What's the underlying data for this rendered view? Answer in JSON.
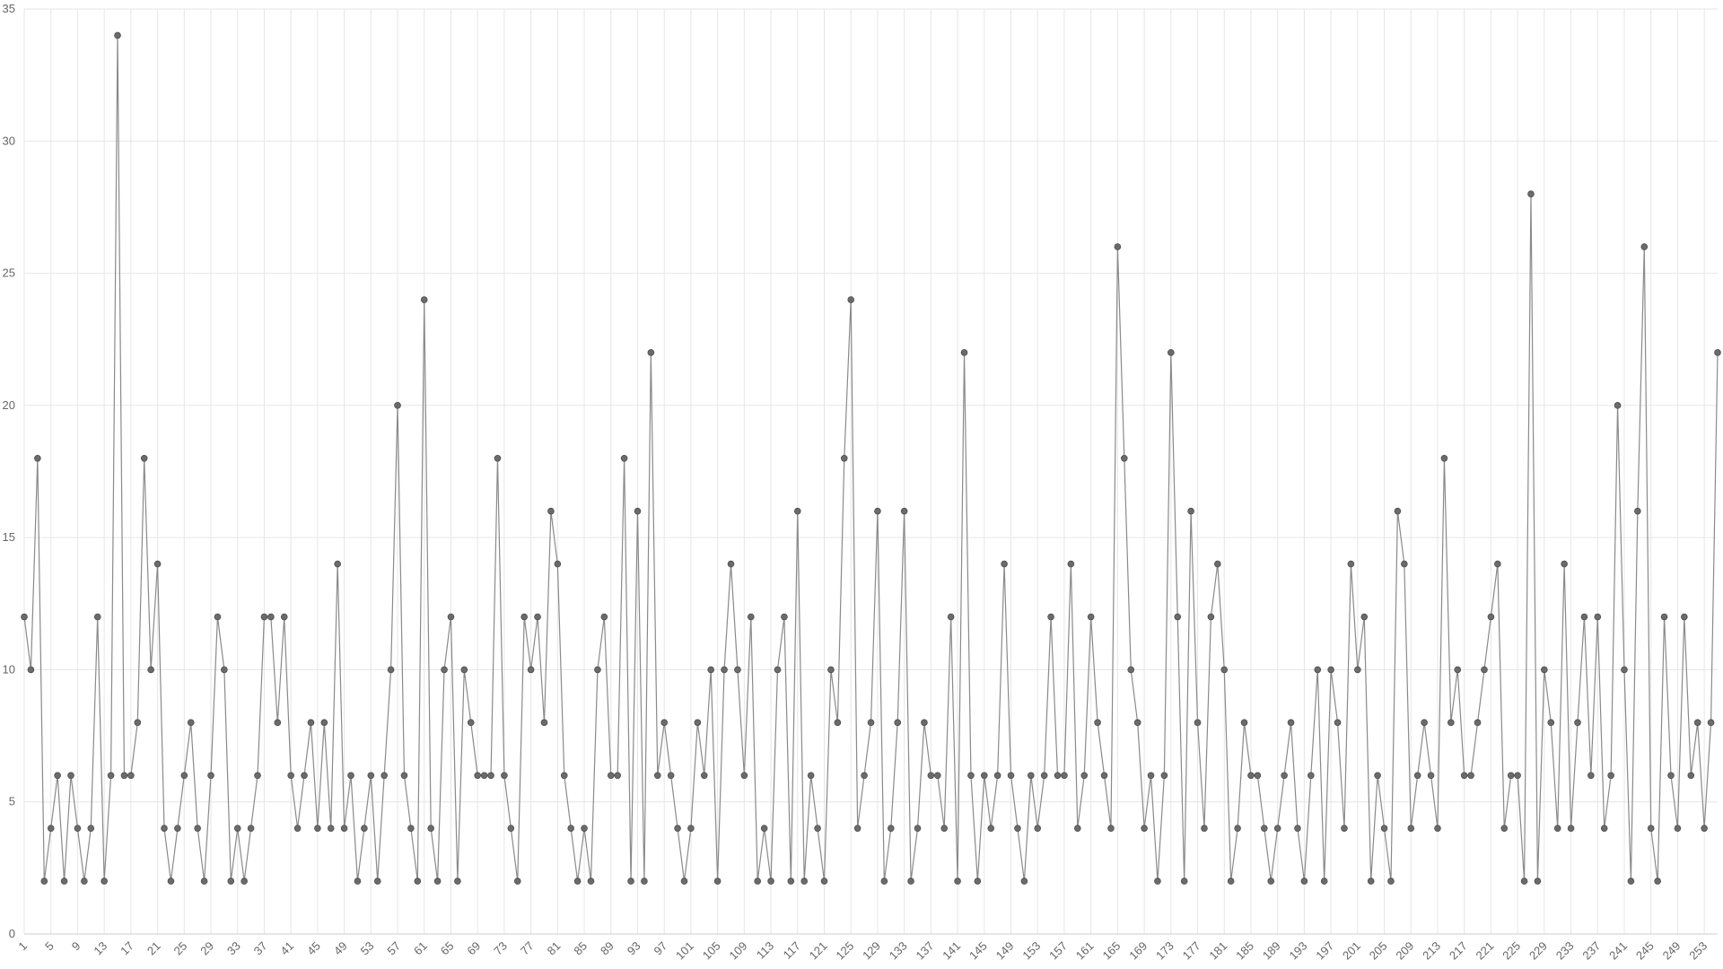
{
  "chart_data": {
    "type": "line",
    "title": "",
    "xlabel": "",
    "ylabel": "",
    "x": [
      1,
      2,
      3,
      4,
      5,
      6,
      7,
      8,
      9,
      10,
      11,
      12,
      13,
      14,
      15,
      16,
      17,
      18,
      19,
      20,
      21,
      22,
      23,
      24,
      25,
      26,
      27,
      28,
      29,
      30,
      31,
      32,
      33,
      34,
      35,
      36,
      37,
      38,
      39,
      40,
      41,
      42,
      43,
      44,
      45,
      46,
      47,
      48,
      49,
      50,
      51,
      52,
      53,
      54,
      55,
      56,
      57,
      58,
      59,
      60,
      61,
      62,
      63,
      64,
      65,
      66,
      67,
      68,
      69,
      70,
      71,
      72,
      73,
      74,
      75,
      76,
      77,
      78,
      79,
      80,
      81,
      82,
      83,
      84,
      85,
      86,
      87,
      88,
      89,
      90,
      91,
      92,
      93,
      94,
      95,
      96,
      97,
      98,
      99,
      100,
      101,
      102,
      103,
      104,
      105,
      106,
      107,
      108,
      109,
      110,
      111,
      112,
      113,
      114,
      115,
      116,
      117,
      118,
      119,
      120,
      121,
      122,
      123,
      124,
      125,
      126,
      127,
      128,
      129,
      130,
      131,
      132,
      133,
      134,
      135,
      136,
      137,
      138,
      139,
      140,
      141,
      142,
      143,
      144,
      145,
      146,
      147,
      148,
      149,
      150,
      151,
      152,
      153,
      154,
      155,
      156,
      157,
      158,
      159,
      160,
      161,
      162,
      163,
      164,
      165,
      166,
      167,
      168,
      169,
      170,
      171,
      172,
      173,
      174,
      175,
      176,
      177,
      178,
      179,
      180,
      181,
      182,
      183,
      184,
      185,
      186,
      187,
      188,
      189,
      190,
      191,
      192,
      193,
      194,
      195,
      196,
      197,
      198,
      199,
      200,
      201,
      202,
      203,
      204,
      205,
      206,
      207,
      208,
      209,
      210,
      211,
      212,
      213,
      214,
      215,
      216,
      217,
      218,
      219,
      220,
      221,
      222,
      223,
      224,
      225,
      226,
      227,
      228,
      229,
      230,
      231,
      232,
      233,
      234,
      235,
      236,
      237,
      238,
      239,
      240,
      241,
      242,
      243,
      244,
      245,
      246,
      247,
      248,
      249,
      250,
      251,
      252,
      253,
      254,
      255
    ],
    "x_tick_labels": [
      "1",
      "5",
      "9",
      "13",
      "17",
      "21",
      "25",
      "29",
      "33",
      "37",
      "41",
      "45",
      "49",
      "53",
      "57",
      "61",
      "65",
      "69",
      "73",
      "77",
      "81",
      "85",
      "89",
      "93",
      "97",
      "101",
      "105",
      "109",
      "113",
      "117",
      "121",
      "125",
      "129",
      "133",
      "137",
      "141",
      "145",
      "149",
      "153",
      "157",
      "161",
      "165",
      "169",
      "173",
      "177",
      "181",
      "185",
      "189",
      "193",
      "197",
      "201",
      "205",
      "209",
      "213",
      "217",
      "221",
      "225",
      "229",
      "233",
      "237",
      "241",
      "245",
      "249",
      "253"
    ],
    "series": [
      {
        "values": [
          12,
          10,
          18,
          2,
          4,
          6,
          2,
          6,
          4,
          2,
          4,
          12,
          2,
          6,
          34,
          6,
          6,
          8,
          18,
          10,
          14,
          4,
          2,
          4,
          6,
          8,
          4,
          2,
          6,
          12,
          10,
          2,
          4,
          2,
          4,
          6,
          12,
          12,
          8,
          12,
          6,
          4,
          6,
          8,
          4,
          8,
          4,
          14,
          4,
          6,
          2,
          4,
          6,
          2,
          6,
          10,
          20,
          6,
          4,
          2,
          24,
          4,
          2,
          10,
          12,
          2,
          10,
          8,
          6,
          6,
          6,
          18,
          6,
          4,
          2,
          12,
          10,
          12,
          8,
          16,
          14,
          6,
          4,
          2,
          4,
          2,
          10,
          12,
          6,
          6,
          18,
          2,
          16,
          2,
          22,
          6,
          8,
          6,
          4,
          2,
          4,
          8,
          6,
          10,
          2,
          10,
          14,
          10,
          6,
          12,
          2,
          4,
          2,
          10,
          12,
          2,
          16,
          2,
          6,
          4,
          2,
          10,
          8,
          18,
          24,
          4,
          6,
          8,
          16,
          2,
          4,
          8,
          16,
          2,
          4,
          8,
          6,
          6,
          4,
          12,
          2,
          22,
          6,
          2,
          6,
          4,
          6,
          14,
          6,
          4,
          2,
          6,
          4,
          6,
          12,
          6,
          6,
          14,
          4,
          6,
          12,
          8,
          6,
          4,
          26,
          18,
          10,
          8,
          4,
          6,
          2,
          6,
          22,
          12,
          2,
          16,
          8,
          4,
          12,
          14,
          10,
          2,
          4,
          8,
          6,
          6,
          4,
          2,
          4,
          6,
          8,
          4,
          2,
          6,
          10,
          2,
          10,
          8,
          4,
          14,
          10,
          12,
          2,
          6,
          4,
          2,
          16,
          14,
          4,
          6,
          8,
          6,
          4,
          18,
          8,
          10,
          6,
          6,
          8,
          10,
          12,
          14,
          4,
          6,
          6,
          2,
          28,
          2,
          10,
          8,
          4,
          14,
          4,
          8,
          12,
          6,
          12,
          4,
          6,
          20,
          10,
          2,
          16,
          26,
          4,
          2,
          12,
          6,
          4,
          12,
          6,
          8,
          4,
          8,
          22
        ]
      }
    ],
    "ylim": [
      0,
      35
    ],
    "y_ticks": [
      0,
      5,
      10,
      15,
      20,
      25,
      30,
      35
    ],
    "grid": true,
    "legend": "none"
  }
}
